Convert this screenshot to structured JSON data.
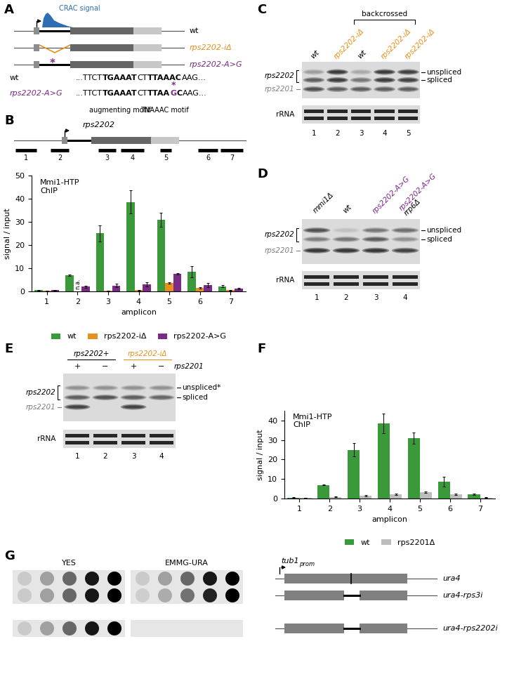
{
  "panel_labels": [
    "A",
    "B",
    "C",
    "D",
    "E",
    "F",
    "G"
  ],
  "chart_data": [
    {
      "type": "bar",
      "annotation": "Mmi1-HTP\nChIP",
      "categories": [
        "1",
        "2",
        "3",
        "4",
        "5",
        "6",
        "7"
      ],
      "xlabel": "amplicon",
      "ylabel": "signal / input",
      "ylim": [
        0,
        50
      ],
      "yticks": [
        0,
        10,
        20,
        30,
        40,
        50
      ],
      "grid": false,
      "legend": "upper center",
      "series": [
        {
          "name": "wt",
          "color": "#3a9a3a",
          "values": [
            0.5,
            7,
            25,
            38.5,
            31,
            8.5,
            2.2
          ],
          "errors": [
            0.2,
            0.3,
            3.5,
            5,
            3,
            2.5,
            0.5
          ]
        },
        {
          "name": "rps2202-iΔ",
          "color": "#e8901c",
          "values": [
            0.3,
            null,
            0.3,
            0.5,
            3.5,
            1.5,
            0.5
          ],
          "errors": [
            0.1,
            null,
            0.1,
            0.2,
            0.3,
            0.3,
            0.1
          ],
          "value_labels": [
            null,
            "n.a.",
            null,
            null,
            null,
            null,
            null
          ]
        },
        {
          "name": "rps2202-A>G",
          "color": "#7b2a86",
          "values": [
            0.5,
            2,
            2.5,
            3,
            7.5,
            2.8,
            1.2
          ],
          "errors": [
            0.2,
            0.5,
            0.7,
            0.8,
            0.3,
            0.9,
            0.3
          ]
        }
      ]
    },
    {
      "type": "bar",
      "annotation": "Mmi1-HTP\nChIP",
      "categories": [
        "1",
        "2",
        "3",
        "4",
        "5",
        "6",
        "7"
      ],
      "xlabel": "amplicon",
      "ylabel": "signal / input",
      "ylim": [
        0,
        45
      ],
      "yticks": [
        0,
        10,
        20,
        30,
        40
      ],
      "grid": false,
      "legend": "upper center",
      "series": [
        {
          "name": "wt",
          "color": "#3a9a3a",
          "values": [
            0.5,
            7,
            25,
            38.5,
            31,
            8.5,
            2.2
          ],
          "errors": [
            0.2,
            0.3,
            3.5,
            5,
            3,
            2.5,
            0.5
          ]
        },
        {
          "name": "rps2201Δ",
          "color": "#bdbdbd",
          "values": [
            0.3,
            0.8,
            1.5,
            2.2,
            3.3,
            2.2,
            0.5
          ],
          "errors": [
            0.1,
            0.2,
            0.3,
            0.4,
            0.3,
            0.3,
            0.1
          ]
        }
      ]
    }
  ],
  "diagrams": {
    "A": {
      "crac_label": "CRAC signal",
      "crac_color": "#2f6db5",
      "constructs": [
        {
          "name": "wt",
          "color": "#000000"
        },
        {
          "name": "rps2202-iΔ",
          "color": "#e8901c"
        },
        {
          "name": "rps2202-A>G",
          "color": "#7b2a86"
        }
      ],
      "mutation_mark": "*",
      "sequences": [
        {
          "name": "wt",
          "color": "#000000",
          "segments": [
            {
              "text": "...TTCT"
            },
            {
              "text": "TGAAAT",
              "motif": "augmenting motif"
            },
            {
              "text": "CT"
            },
            {
              "text": "TTAAAC",
              "motif": "TNAAAC motif"
            },
            {
              "text": "AAG..."
            }
          ]
        },
        {
          "name": "rps2202-A>G",
          "color": "#7b2a86",
          "segments": [
            {
              "text": "...TTCT"
            },
            {
              "text": "TGAAAT",
              "bold": true
            },
            {
              "text": "CT"
            },
            {
              "text": "TTAA",
              "bold": true
            },
            {
              "text": "G",
              "bold": true,
              "mutation": true
            },
            {
              "text": "C",
              "bold": true
            },
            {
              "text": "AAG..."
            }
          ]
        }
      ]
    },
    "B": {
      "gene": "rps2202"
    },
    "C": {
      "lanes": [
        {
          "label": [
            "wt"
          ],
          "colors": [
            "#000000"
          ],
          "number": "1"
        },
        {
          "label": [
            "rps2202-iΔ"
          ],
          "colors": [
            "#e8901c"
          ],
          "number": "2"
        },
        {
          "label": [
            "wt"
          ],
          "colors": [
            "#000000"
          ],
          "number": "3"
        },
        {
          "label": [
            "rps2202-iΔ"
          ],
          "colors": [
            "#e8901c"
          ],
          "number": "4"
        },
        {
          "label": [
            "rps2202-iΔ"
          ],
          "colors": [
            "#e8901c"
          ],
          "number": "5"
        }
      ],
      "bracket": "backcrossed",
      "bracket_lanes": [
        "3",
        "5"
      ],
      "left_labels": {
        "bracket": "rps2202",
        "band": "rps2201"
      },
      "right_labels": [
        "unspliced",
        "spliced"
      ],
      "loading": "rRNA"
    },
    "D": {
      "lanes": [
        {
          "label": [
            "mmi1Δ"
          ],
          "colors": [
            "#000000"
          ],
          "number": "1"
        },
        {
          "label": [
            "wt"
          ],
          "colors": [
            "#000000"
          ],
          "number": "2"
        },
        {
          "label": [
            "rps2202-A>G"
          ],
          "colors": [
            "#7b2a86"
          ],
          "number": "3"
        },
        {
          "label": [
            "rps2202-A>G",
            "rrp6Δ"
          ],
          "colors": [
            "#7b2a86",
            "#000000"
          ],
          "number": "4"
        }
      ],
      "left_labels": {
        "bracket": "rps2202",
        "band": "rps2201"
      },
      "right_labels": [
        "unspliced",
        "spliced"
      ],
      "loading": "rRNA"
    },
    "E": {
      "groups": [
        {
          "label": "rps2202+",
          "color": "#000000"
        },
        {
          "label": "rps2202-iΔ",
          "color": "#e8901c"
        }
      ],
      "signs": [
        "+",
        "−",
        "+",
        "−"
      ],
      "sign_label": "rps2201",
      "numbers": [
        "1",
        "2",
        "3",
        "4"
      ],
      "left_labels": {
        "bracket": "rps2202",
        "band": "rps2201"
      },
      "right_labels": [
        "unspliced*",
        "spliced"
      ],
      "loading": "rRNA"
    },
    "G": {
      "media": [
        "YES",
        "EMMG-URA"
      ],
      "promoter": {
        "text": "tub1",
        "subscript": "prom"
      },
      "constructs": [
        "ura4",
        "ura4-rps3i",
        "ura4-rps2202i"
      ]
    }
  }
}
